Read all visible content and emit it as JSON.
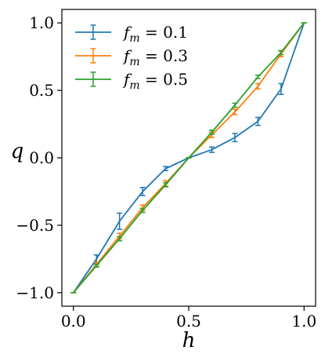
{
  "chart_data": {
    "type": "line",
    "xlabel": "h",
    "ylabel": "q",
    "xlim": [
      -0.05,
      1.05
    ],
    "ylim": [
      -1.1,
      1.1
    ],
    "xticks": [
      0.0,
      0.5,
      1.0
    ],
    "xtick_labels": [
      "0.0",
      "0.5",
      "1.0"
    ],
    "yticks": [
      -1.0,
      -0.5,
      0.0,
      0.5,
      1.0
    ],
    "ytick_labels": [
      "−1.0",
      "−0.5",
      "0.0",
      "0.5",
      "1.0"
    ],
    "grid": false,
    "legend_position": "top-left",
    "x": [
      0.0,
      0.1,
      0.2,
      0.3,
      0.4,
      0.5,
      0.6,
      0.7,
      0.8,
      0.9,
      1.0
    ],
    "series": [
      {
        "name": "f_m = 0.1",
        "color": "#1f77b4",
        "values": [
          -1.0,
          -0.75,
          -0.47,
          -0.25,
          -0.08,
          0.0,
          0.06,
          0.15,
          0.27,
          0.51,
          1.0
        ],
        "errors": [
          0.0,
          0.03,
          0.06,
          0.03,
          0.015,
          0.0,
          0.02,
          0.03,
          0.03,
          0.04,
          0.0
        ]
      },
      {
        "name": "f_m = 0.3",
        "color": "#ff7f0e",
        "values": [
          -1.0,
          -0.79,
          -0.58,
          -0.37,
          -0.19,
          0.0,
          0.17,
          0.34,
          0.53,
          0.77,
          1.0
        ],
        "errors": [
          0.0,
          0.015,
          0.02,
          0.02,
          0.02,
          0.0,
          0.02,
          0.02,
          0.02,
          0.02,
          0.0
        ]
      },
      {
        "name": "f_m = 0.5",
        "color": "#2ca02c",
        "values": [
          -1.0,
          -0.8,
          -0.6,
          -0.39,
          -0.2,
          0.0,
          0.19,
          0.39,
          0.6,
          0.78,
          1.0
        ],
        "errors": [
          0.0,
          0.01,
          0.015,
          0.015,
          0.015,
          0.0,
          0.015,
          0.015,
          0.012,
          0.015,
          0.0
        ]
      }
    ]
  },
  "legend": [
    {
      "prefix": "f",
      "sub": "m",
      "rest": " = 0.1"
    },
    {
      "prefix": "f",
      "sub": "m",
      "rest": " = 0.3"
    },
    {
      "prefix": "f",
      "sub": "m",
      "rest": " = 0.5"
    }
  ]
}
